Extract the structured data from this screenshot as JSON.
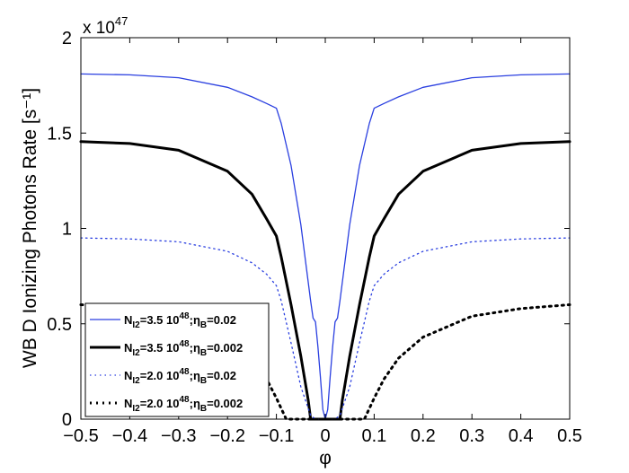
{
  "chart_data": {
    "type": "line",
    "xlabel": "φ",
    "ylabel": "WB D Ionizing Photons Rate [s⁻¹]",
    "y_multiplier": "x 10",
    "y_multiplier_exp": "47",
    "xlim": [
      -0.5,
      0.5
    ],
    "ylim": [
      0,
      2
    ],
    "xticks": [
      "−0.5",
      "−0.4",
      "−0.3",
      "−0.2",
      "−0.1",
      "0",
      "0.1",
      "0.2",
      "0.3",
      "0.4",
      "0.5"
    ],
    "xtick_values": [
      -0.5,
      -0.4,
      -0.3,
      -0.2,
      -0.1,
      0,
      0.1,
      0.2,
      0.3,
      0.4,
      0.5
    ],
    "yticks": [
      "0",
      "0.5",
      "1",
      "1.5",
      "2"
    ],
    "ytick_values": [
      0,
      0.5,
      1,
      1.5,
      2
    ],
    "grid": false,
    "legend_position": "bottom-left",
    "series": [
      {
        "name": "N_I2=3.5 10^48;η_B=0.02",
        "legend": {
          "n": "N",
          "nsub": "I2",
          "mid": "=3.5 10",
          "exp": "48",
          "semi": ";η",
          "esub": "B",
          "end": "=0.02"
        },
        "color": "#2a3fe0",
        "style": "solid",
        "weight": "thin",
        "x": [
          -0.5,
          -0.4,
          -0.3,
          -0.2,
          -0.15,
          -0.12,
          -0.1,
          -0.09,
          -0.07,
          -0.05,
          -0.03,
          -0.025,
          -0.02,
          -0.015,
          -0.01,
          -0.005,
          0,
          0.005,
          0.01,
          0.015,
          0.02,
          0.025,
          0.03,
          0.05,
          0.07,
          0.09,
          0.1,
          0.12,
          0.15,
          0.2,
          0.3,
          0.4,
          0.5
        ],
        "y": [
          1.81,
          1.805,
          1.79,
          1.74,
          1.69,
          1.655,
          1.63,
          1.55,
          1.33,
          1.02,
          0.62,
          0.53,
          0.51,
          0.38,
          0.22,
          0.05,
          0,
          0.05,
          0.22,
          0.38,
          0.51,
          0.53,
          0.62,
          1.02,
          1.33,
          1.55,
          1.63,
          1.655,
          1.69,
          1.74,
          1.79,
          1.805,
          1.81
        ]
      },
      {
        "name": "N_I2=3.5 10^48;η_B=0.002",
        "legend": {
          "n": "N",
          "nsub": "I2",
          "mid": "=3.5 10",
          "exp": "48",
          "semi": ";η",
          "esub": "B",
          "end": "=0.002"
        },
        "color": "#000000",
        "style": "solid",
        "weight": "thick",
        "x": [
          -0.5,
          -0.4,
          -0.3,
          -0.2,
          -0.15,
          -0.12,
          -0.1,
          -0.09,
          -0.07,
          -0.05,
          -0.035,
          -0.03,
          0,
          0.03,
          0.035,
          0.05,
          0.07,
          0.09,
          0.1,
          0.12,
          0.15,
          0.2,
          0.3,
          0.4,
          0.5
        ],
        "y": [
          1.455,
          1.445,
          1.41,
          1.3,
          1.18,
          1.05,
          0.96,
          0.85,
          0.6,
          0.33,
          0.1,
          0,
          0,
          0,
          0.1,
          0.33,
          0.6,
          0.85,
          0.96,
          1.05,
          1.18,
          1.3,
          1.41,
          1.445,
          1.455
        ]
      },
      {
        "name": "N_I2=2.0 10^48;η_B=0.02",
        "legend": {
          "n": "N",
          "nsub": "I2",
          "mid": "=2.0 10",
          "exp": "48",
          "semi": ";η",
          "esub": "B",
          "end": "=0.02"
        },
        "color": "#2a3fe0",
        "style": "dotted",
        "weight": "thin",
        "x": [
          -0.5,
          -0.4,
          -0.3,
          -0.2,
          -0.15,
          -0.12,
          -0.1,
          -0.09,
          -0.07,
          -0.05,
          -0.03,
          -0.02,
          0,
          0.02,
          0.03,
          0.05,
          0.07,
          0.09,
          0.1,
          0.12,
          0.15,
          0.2,
          0.3,
          0.4,
          0.5
        ],
        "y": [
          0.95,
          0.945,
          0.93,
          0.88,
          0.82,
          0.76,
          0.7,
          0.62,
          0.4,
          0.17,
          0.02,
          0,
          0,
          0,
          0.02,
          0.17,
          0.4,
          0.62,
          0.7,
          0.76,
          0.82,
          0.88,
          0.93,
          0.945,
          0.95
        ]
      },
      {
        "name": "N_I2=2.0 10^48;η_B=0.002",
        "legend": {
          "n": "N",
          "nsub": "I2",
          "mid": "=2.0 10",
          "exp": "48",
          "semi": ";η",
          "esub": "B",
          "end": "=0.002"
        },
        "color": "#000000",
        "style": "dotted",
        "weight": "thick",
        "x": [
          -0.5,
          -0.4,
          -0.3,
          -0.2,
          -0.15,
          -0.12,
          -0.1,
          -0.08,
          0,
          0.08,
          0.1,
          0.12,
          0.15,
          0.2,
          0.3,
          0.4,
          0.5
        ],
        "y": [
          0.6,
          0.58,
          0.54,
          0.43,
          0.32,
          0.21,
          0.11,
          0,
          0,
          0,
          0.11,
          0.21,
          0.32,
          0.43,
          0.54,
          0.58,
          0.6
        ]
      }
    ]
  }
}
